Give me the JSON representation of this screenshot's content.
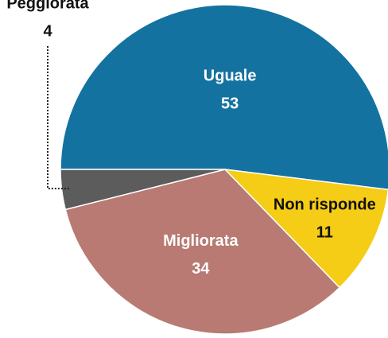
{
  "chart_data": {
    "type": "pie",
    "categories": [
      "Uguale",
      "Non risponde",
      "Migliorata",
      "Peggiorata"
    ],
    "values": [
      53,
      11,
      34,
      4
    ],
    "colors": [
      "#1472a0",
      "#f5cc16",
      "#b87a72",
      "#5c5c5c"
    ],
    "label_colors": [
      "#ffffff",
      "#111111",
      "#ffffff",
      "#111111"
    ]
  }
}
